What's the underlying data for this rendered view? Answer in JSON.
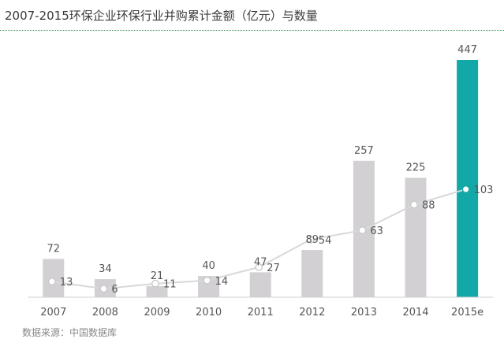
{
  "colors": {
    "bar": "#d3d0d3",
    "bar_highlight": "#13a8a8",
    "line": "#d8d8da",
    "label": "#555555",
    "axis": "#d0d0d0"
  },
  "chart_data": {
    "type": "bar",
    "title": "2007-2015环保企业环保行业并购累计金额（亿元）与数量",
    "categories": [
      "2007",
      "2008",
      "2009",
      "2010",
      "2011",
      "2012",
      "2013",
      "2014",
      "2015e"
    ],
    "series": [
      {
        "kind": "bar",
        "values": [
          72,
          34,
          21,
          40,
          47,
          89,
          257,
          225,
          447
        ],
        "highlight_index": 8
      },
      {
        "kind": "line",
        "values": [
          13,
          6,
          11,
          14,
          27,
          54,
          63,
          88,
          103
        ]
      }
    ],
    "xlabel": "",
    "ylabel": "",
    "grid": false,
    "source_note": "数据来源：中国数据库"
  }
}
